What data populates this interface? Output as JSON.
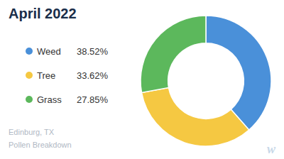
{
  "chart_data": {
    "type": "donut",
    "title": "April 2022",
    "categories": [
      "Weed",
      "Tree",
      "Grass"
    ],
    "values": [
      38.52,
      33.62,
      27.85
    ],
    "value_labels": [
      "38.52%",
      "33.62%",
      "27.85%"
    ],
    "colors": [
      "#4a90d9",
      "#f5c842",
      "#5cb85c"
    ],
    "legend": "left",
    "annotations": [
      "Edinburg, TX",
      "Pollen Breakdown",
      "w"
    ]
  }
}
